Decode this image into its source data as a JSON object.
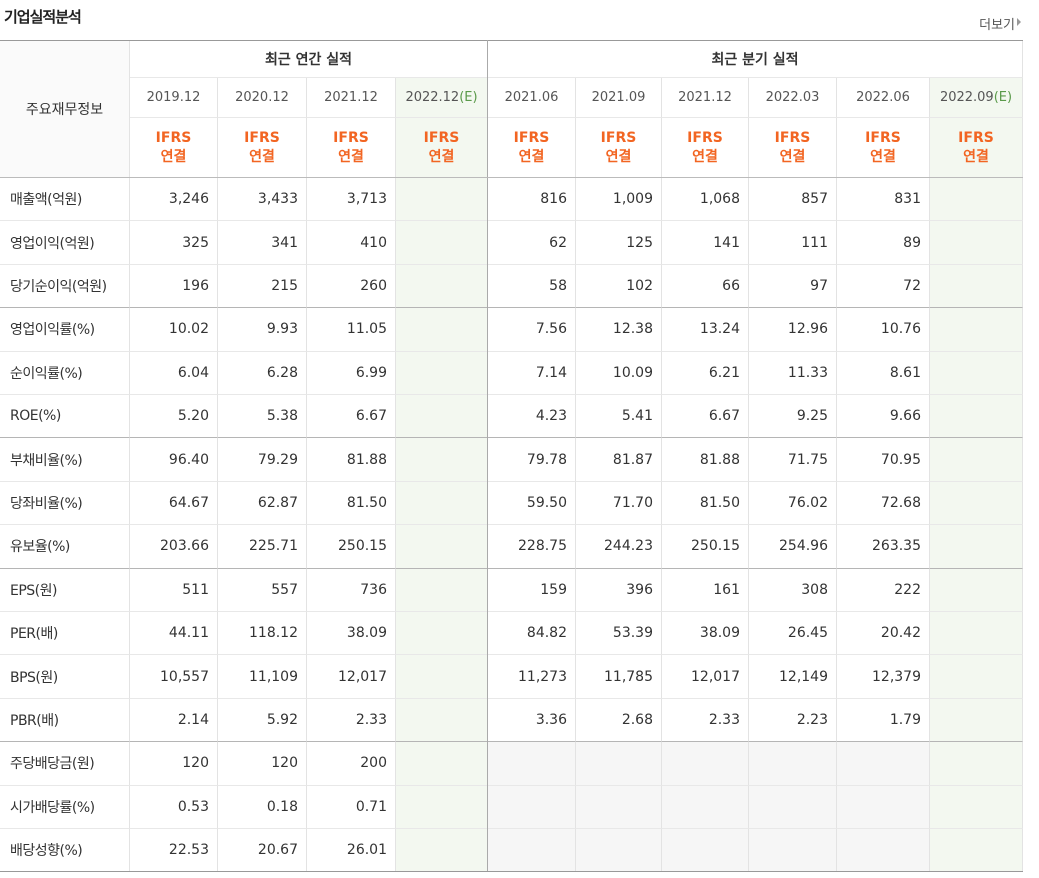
{
  "header": {
    "title": "기업실적분석",
    "more": "더보기"
  },
  "table": {
    "corner": "주요재무정보",
    "groups": [
      "최근 연간 실적",
      "최근 분기 실적"
    ],
    "columns": [
      {
        "date": "2019.12",
        "basis": [
          "IFRS",
          "연결"
        ]
      },
      {
        "date": "2020.12",
        "basis": [
          "IFRS",
          "연결"
        ]
      },
      {
        "date": "2021.12",
        "basis": [
          "IFRS",
          "연결"
        ]
      },
      {
        "date": "2022.12",
        "estimate": "(E)",
        "basis": [
          "IFRS",
          "연결"
        ]
      },
      {
        "date": "2021.06",
        "basis": [
          "IFRS",
          "연결"
        ]
      },
      {
        "date": "2021.09",
        "basis": [
          "IFRS",
          "연결"
        ]
      },
      {
        "date": "2021.12",
        "basis": [
          "IFRS",
          "연결"
        ]
      },
      {
        "date": "2022.03",
        "basis": [
          "IFRS",
          "연결"
        ]
      },
      {
        "date": "2022.06",
        "basis": [
          "IFRS",
          "연결"
        ]
      },
      {
        "date": "2022.09",
        "estimate": "(E)",
        "basis": [
          "IFRS",
          "연결"
        ]
      }
    ],
    "rows": [
      {
        "label": "매출액(억원)",
        "values": [
          "3,246",
          "3,433",
          "3,713",
          null,
          "816",
          "1,009",
          "1,068",
          "857",
          "831",
          null
        ]
      },
      {
        "label": "영업이익(억원)",
        "values": [
          "325",
          "341",
          "410",
          null,
          "62",
          "125",
          "141",
          "111",
          "89",
          null
        ]
      },
      {
        "label": "당기순이익(억원)",
        "values": [
          "196",
          "215",
          "260",
          null,
          "58",
          "102",
          "66",
          "97",
          "72",
          null
        ]
      },
      {
        "label": "영업이익률(%)",
        "values": [
          "10.02",
          "9.93",
          "11.05",
          null,
          "7.56",
          "12.38",
          "13.24",
          "12.96",
          "10.76",
          null
        ]
      },
      {
        "label": "순이익률(%)",
        "values": [
          "6.04",
          "6.28",
          "6.99",
          null,
          "7.14",
          "10.09",
          "6.21",
          "11.33",
          "8.61",
          null
        ]
      },
      {
        "label": "ROE(%)",
        "values": [
          "5.20",
          "5.38",
          "6.67",
          null,
          "4.23",
          "5.41",
          "6.67",
          "9.25",
          "9.66",
          null
        ]
      },
      {
        "label": "부채비율(%)",
        "values": [
          "96.40",
          "79.29",
          "81.88",
          null,
          "79.78",
          "81.87",
          "81.88",
          "71.75",
          "70.95",
          null
        ]
      },
      {
        "label": "당좌비율(%)",
        "values": [
          "64.67",
          "62.87",
          "81.50",
          null,
          "59.50",
          "71.70",
          "81.50",
          "76.02",
          "72.68",
          null
        ]
      },
      {
        "label": "유보율(%)",
        "values": [
          "203.66",
          "225.71",
          "250.15",
          null,
          "228.75",
          "244.23",
          "250.15",
          "254.96",
          "263.35",
          null
        ]
      },
      {
        "label": "EPS(원)",
        "values": [
          "511",
          "557",
          "736",
          null,
          "159",
          "396",
          "161",
          "308",
          "222",
          null
        ]
      },
      {
        "label": "PER(배)",
        "values": [
          "44.11",
          "118.12",
          "38.09",
          null,
          "84.82",
          "53.39",
          "38.09",
          "26.45",
          "20.42",
          null
        ]
      },
      {
        "label": "BPS(원)",
        "values": [
          "10,557",
          "11,109",
          "12,017",
          null,
          "11,273",
          "11,785",
          "12,017",
          "12,149",
          "12,379",
          null
        ]
      },
      {
        "label": "PBR(배)",
        "values": [
          "2.14",
          "5.92",
          "2.33",
          null,
          "3.36",
          "2.68",
          "2.33",
          "2.23",
          "1.79",
          null
        ]
      },
      {
        "label": "주당배당금(원)",
        "values": [
          "120",
          "120",
          "200",
          null,
          null,
          null,
          null,
          null,
          null,
          null
        ]
      },
      {
        "label": "시가배당률(%)",
        "values": [
          "0.53",
          "0.18",
          "0.71",
          null,
          null,
          null,
          null,
          null,
          null,
          null
        ]
      },
      {
        "label": "배당성향(%)",
        "values": [
          "22.53",
          "20.67",
          "26.01",
          null,
          null,
          null,
          null,
          null,
          null,
          null
        ]
      }
    ]
  }
}
